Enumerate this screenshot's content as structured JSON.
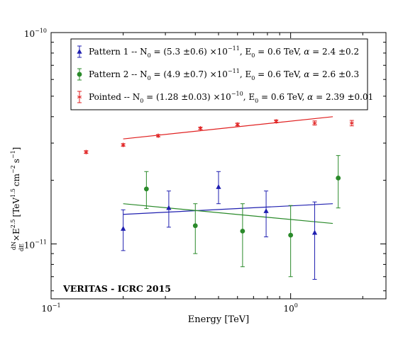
{
  "chart_data": {
    "type": "scatter",
    "title": "",
    "xlabel": "Energy [TeV]",
    "ylabel": "dN/dE ×E^2.5 [TeV^1.5 cm^-2 s^-1]",
    "xscale": "log",
    "yscale": "log",
    "xlim": [
      0.1,
      2.5
    ],
    "ylim": [
      5.5e-12,
      1e-10
    ],
    "x_ticks": [
      {
        "value": 0.1,
        "base": "10",
        "exp": "−1"
      },
      {
        "value": 1,
        "base": "10",
        "exp": "0"
      }
    ],
    "y_ticks": [
      {
        "value": 1e-11,
        "base": "10",
        "exp": "−11"
      },
      {
        "value": 1e-10,
        "base": "10",
        "exp": "−10"
      }
    ],
    "ylabel_parts": {
      "frac_num": "dN",
      "frac_den": "dE",
      "times": "×E",
      "exp1": "2.5",
      "open": "[TeV",
      "exp2": "1.5",
      "cm": "cm",
      "exp3": "−2",
      "s": "s",
      "exp4": "−1",
      "close": "]"
    },
    "annotation": "VERITAS - ICRC 2015",
    "legend_position": "top",
    "grid": false,
    "series": [
      {
        "name": "Pattern 1",
        "legend": {
          "pre": "Pattern 1 -- N",
          "n0sub": "0",
          "n0val": " = (5.3 ±0.6) ×10",
          "n0exp": "−11",
          "e0pre": ", E",
          "e0sub": "0",
          "e0val": " = 0.6 TeV, ",
          "alpha": "α",
          "alphaval": " = 2.4 ±0.2"
        },
        "color": "#1f1fb0",
        "marker": "triangle",
        "points": [
          {
            "x": 0.2,
            "y": 1.18e-11,
            "lo": 9.3e-12,
            "hi": 1.45e-11
          },
          {
            "x": 0.31,
            "y": 1.48e-11,
            "lo": 1.2e-11,
            "hi": 1.78e-11
          },
          {
            "x": 0.5,
            "y": 1.86e-11,
            "lo": 1.55e-11,
            "hi": 2.2e-11
          },
          {
            "x": 0.79,
            "y": 1.43e-11,
            "lo": 1.08e-11,
            "hi": 1.78e-11
          },
          {
            "x": 1.26,
            "y": 1.13e-11,
            "lo": 6.8e-12,
            "hi": 1.58e-11
          }
        ],
        "fit": [
          {
            "x": 0.2,
            "y": 1.38e-11
          },
          {
            "x": 1.5,
            "y": 1.55e-11
          }
        ]
      },
      {
        "name": "Pattern 2",
        "legend": {
          "pre": "Pattern 2 -- N",
          "n0sub": "0",
          "n0val": " = (4.9 ±0.7) ×10",
          "n0exp": "−11",
          "e0pre": ", E",
          "e0sub": "0",
          "e0val": " = 0.6 TeV, ",
          "alpha": "α",
          "alphaval": " = 2.6 ±0.3"
        },
        "color": "#2a8a2a",
        "marker": "circle",
        "points": [
          {
            "x": 0.25,
            "y": 1.82e-11,
            "lo": 1.47e-11,
            "hi": 2.2e-11
          },
          {
            "x": 0.4,
            "y": 1.22e-11,
            "lo": 9e-12,
            "hi": 1.55e-11
          },
          {
            "x": 0.63,
            "y": 1.15e-11,
            "lo": 7.8e-12,
            "hi": 1.55e-11
          },
          {
            "x": 1.0,
            "y": 1.1e-11,
            "lo": 7e-12,
            "hi": 1.52e-11
          },
          {
            "x": 1.58,
            "y": 2.05e-11,
            "lo": 1.48e-11,
            "hi": 2.62e-11
          }
        ],
        "fit": [
          {
            "x": 0.2,
            "y": 1.55e-11
          },
          {
            "x": 1.5,
            "y": 1.25e-11
          }
        ]
      },
      {
        "name": "Pointed",
        "legend": {
          "pre": "Pointed -- N",
          "n0sub": "0",
          "n0val": " = (1.28 ±0.03) ×10",
          "n0exp": "−10",
          "e0pre": ", E",
          "e0sub": "0",
          "e0val": " = 0.6 TeV, ",
          "alpha": "α",
          "alphaval": " = 2.39 ±0.01"
        },
        "color": "#e02020",
        "marker": "star",
        "points": [
          {
            "x": 0.14,
            "y": 2.72e-11,
            "lo": 2.68e-11,
            "hi": 2.76e-11
          },
          {
            "x": 0.2,
            "y": 2.94e-11,
            "lo": 2.9e-11,
            "hi": 2.98e-11
          },
          {
            "x": 0.28,
            "y": 3.25e-11,
            "lo": 3.21e-11,
            "hi": 3.29e-11
          },
          {
            "x": 0.42,
            "y": 3.52e-11,
            "lo": 3.48e-11,
            "hi": 3.57e-11
          },
          {
            "x": 0.6,
            "y": 3.67e-11,
            "lo": 3.62e-11,
            "hi": 3.73e-11
          },
          {
            "x": 0.87,
            "y": 3.8e-11,
            "lo": 3.74e-11,
            "hi": 3.86e-11
          },
          {
            "x": 1.26,
            "y": 3.73e-11,
            "lo": 3.65e-11,
            "hi": 3.82e-11
          },
          {
            "x": 1.8,
            "y": 3.73e-11,
            "lo": 3.62e-11,
            "hi": 3.84e-11
          }
        ],
        "fit": [
          {
            "x": 0.2,
            "y": 3.14e-11
          },
          {
            "x": 1.5,
            "y": 4e-11
          }
        ]
      }
    ]
  }
}
